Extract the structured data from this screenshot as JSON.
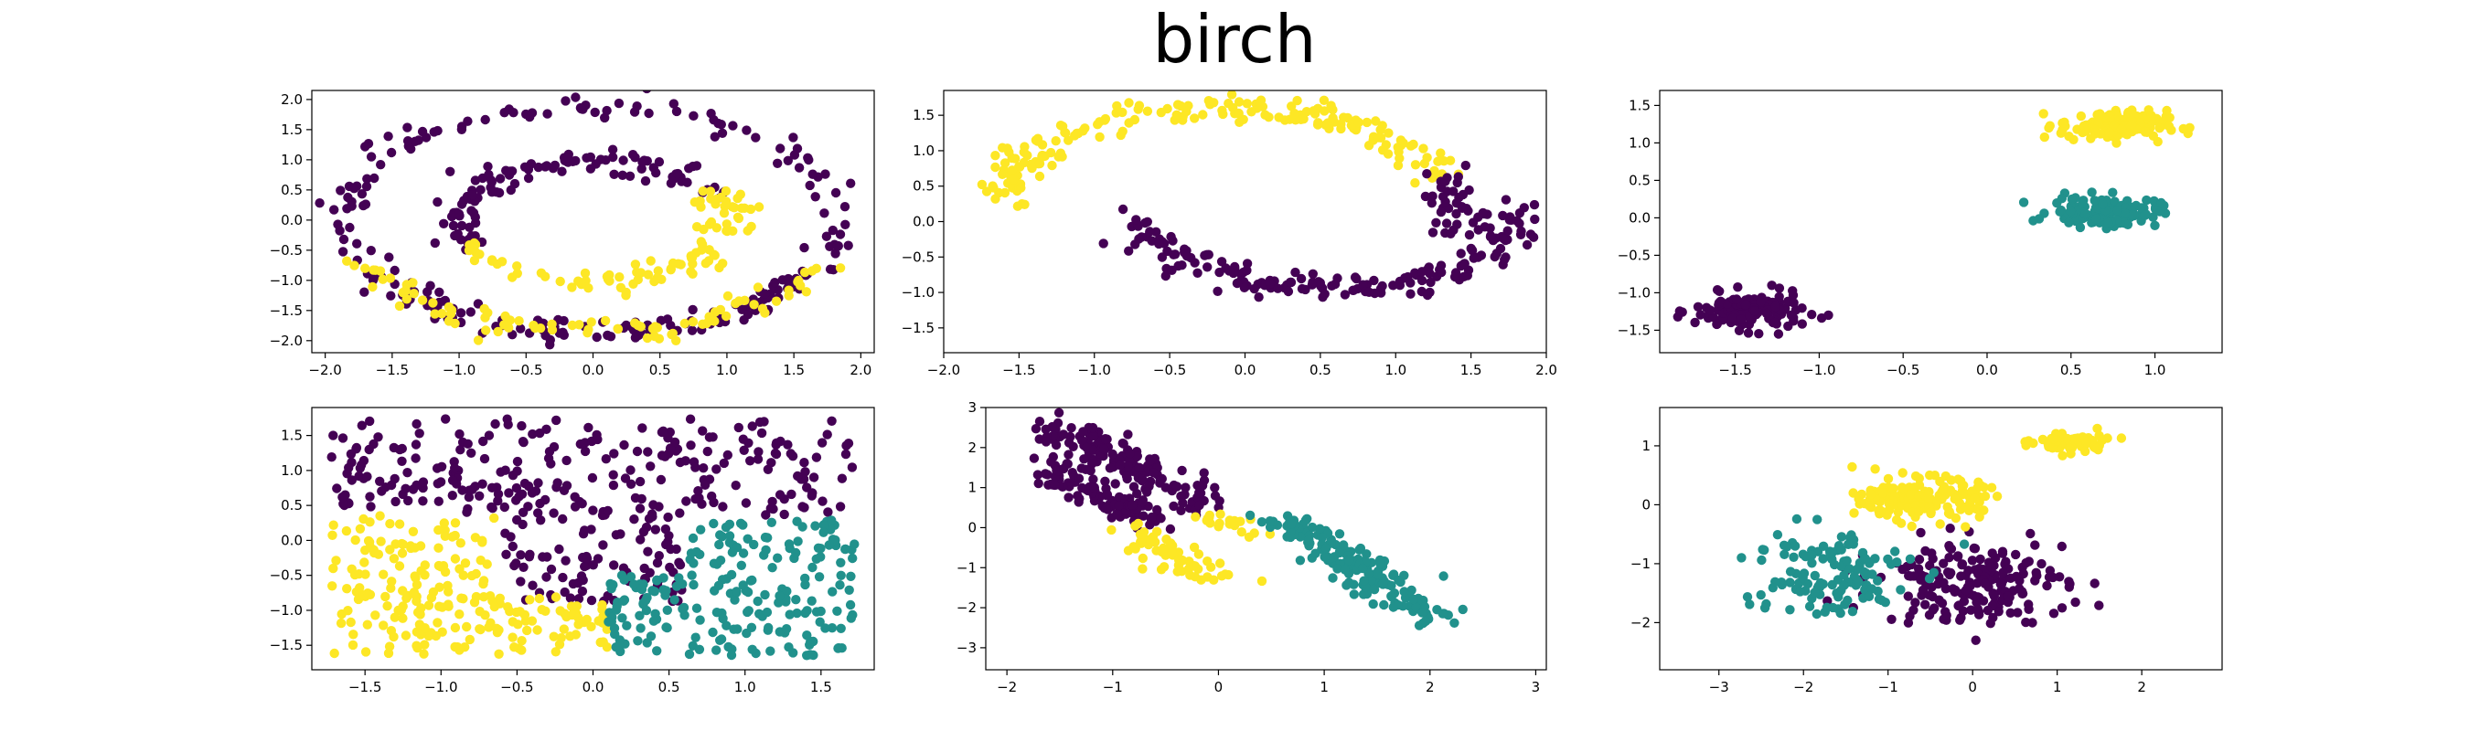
{
  "figure": {
    "title": "birch"
  },
  "palette": {
    "purple": "#440154",
    "teal": "#21918c",
    "yellow": "#fde725"
  },
  "chart_data": [
    {
      "type": "scatter",
      "subplot": "top-left",
      "xlim": [
        -2.1,
        2.1
      ],
      "ylim": [
        -2.2,
        2.15
      ],
      "xticks": [
        -2.0,
        -1.5,
        -1.0,
        -0.5,
        0.0,
        0.5,
        1.0,
        1.5,
        2.0
      ],
      "yticks": [
        -2.0,
        -1.5,
        -1.0,
        -0.5,
        0.0,
        0.5,
        1.0,
        1.5,
        2.0
      ],
      "tick_precision": 1,
      "series": [
        {
          "color": "#440154",
          "shapes": [
            {
              "kind": "arc",
              "cx": 0,
              "cy": 0,
              "r": 1.85,
              "a0": -150,
              "a1": 330,
              "n": 230,
              "noise": 0.1
            },
            {
              "kind": "arc",
              "cx": 0,
              "cy": 0,
              "r": 1.0,
              "a0": 30,
              "a1": 200,
              "n": 110,
              "noise": 0.1
            }
          ]
        },
        {
          "color": "#fde725",
          "shapes": [
            {
              "kind": "arc",
              "cx": 0,
              "cy": 0,
              "r": 1.85,
              "a0": 205,
              "a1": 335,
              "n": 90,
              "noise": 0.1
            },
            {
              "kind": "arc",
              "cx": 0,
              "cy": 0,
              "r": 1.0,
              "a0": 200,
              "a1": 390,
              "n": 100,
              "noise": 0.1
            }
          ]
        }
      ]
    },
    {
      "type": "scatter",
      "subplot": "top-middle",
      "xlim": [
        -2.0,
        2.0
      ],
      "ylim": [
        -1.85,
        1.85
      ],
      "xticks": [
        -2.0,
        -1.5,
        -1.0,
        -0.5,
        0.0,
        0.5,
        1.0,
        1.5,
        2.0
      ],
      "yticks": [
        -1.5,
        -1.0,
        -0.5,
        0.0,
        0.5,
        1.0,
        1.5
      ],
      "tick_precision": 1,
      "series": [
        {
          "color": "#fde725",
          "shapes": [
            {
              "kind": "arc",
              "cx": -0.15,
              "cy": 0.05,
              "r": 1.55,
              "a0": 20,
              "a1": 170,
              "n": 190,
              "noise": 0.1
            }
          ]
        },
        {
          "color": "#440154",
          "shapes": [
            {
              "kind": "arc",
              "cx": 0.55,
              "cy": 0.35,
              "r": 1.3,
              "a0": 195,
              "a1": 355,
              "n": 180,
              "noise": 0.1
            },
            {
              "kind": "arc",
              "cx": -0.15,
              "cy": 0.05,
              "r": 1.55,
              "a0": -8,
              "a1": 20,
              "n": 40,
              "noise": 0.1
            }
          ]
        }
      ]
    },
    {
      "type": "scatter",
      "subplot": "top-right",
      "xlim": [
        -1.95,
        1.4
      ],
      "ylim": [
        -1.8,
        1.7
      ],
      "xticks": [
        -1.5,
        -1.0,
        -0.5,
        0.0,
        0.5,
        1.0
      ],
      "yticks": [
        -1.5,
        -1.0,
        -0.5,
        0.0,
        0.5,
        1.0,
        1.5
      ],
      "tick_precision": 1,
      "series": [
        {
          "color": "#440154",
          "shapes": [
            {
              "kind": "blob",
              "cx": -1.42,
              "cy": -1.25,
              "sx": 0.16,
              "sy": 0.12,
              "n": 150
            }
          ]
        },
        {
          "color": "#21918c",
          "shapes": [
            {
              "kind": "blob",
              "cx": 0.7,
              "cy": 0.08,
              "sx": 0.16,
              "sy": 0.1,
              "n": 140
            }
          ]
        },
        {
          "color": "#fde725",
          "shapes": [
            {
              "kind": "blob",
              "cx": 0.75,
              "cy": 1.23,
              "sx": 0.16,
              "sy": 0.1,
              "n": 140
            }
          ]
        }
      ]
    },
    {
      "type": "scatter",
      "subplot": "bottom-left",
      "xlim": [
        -1.85,
        1.85
      ],
      "ylim": [
        -1.85,
        1.9
      ],
      "xticks": [
        -1.5,
        -1.0,
        -0.5,
        0.0,
        0.5,
        1.0,
        1.5
      ],
      "yticks": [
        -1.5,
        -1.0,
        -0.5,
        0.0,
        0.5,
        1.0,
        1.5
      ],
      "tick_precision": 1,
      "series": [
        {
          "color": "#440154",
          "shapes": [
            {
              "kind": "rect",
              "x0": -1.72,
              "x1": 1.72,
              "y0": 0.35,
              "y1": 1.75,
              "n": 260
            },
            {
              "kind": "rect",
              "x0": -0.6,
              "x1": 0.6,
              "y0": -0.9,
              "y1": 0.35,
              "n": 90
            }
          ]
        },
        {
          "color": "#fde725",
          "shapes": [
            {
              "kind": "rect",
              "x0": -1.72,
              "x1": -0.65,
              "y0": -1.65,
              "y1": 0.35,
              "n": 160
            },
            {
              "kind": "rect",
              "x0": -0.65,
              "x1": 0.1,
              "y0": -1.65,
              "y1": -0.8,
              "n": 60
            }
          ]
        },
        {
          "color": "#21918c",
          "shapes": [
            {
              "kind": "rect",
              "x0": 0.6,
              "x1": 1.72,
              "y0": -1.65,
              "y1": 0.3,
              "n": 160
            },
            {
              "kind": "rect",
              "x0": 0.1,
              "x1": 0.6,
              "y0": -1.65,
              "y1": -0.5,
              "n": 60
            }
          ]
        }
      ]
    },
    {
      "type": "scatter",
      "subplot": "bottom-middle",
      "xlim": [
        -2.2,
        3.1
      ],
      "ylim": [
        -3.55,
        3.0
      ],
      "xticks": [
        -2,
        -1,
        0,
        1,
        2,
        3
      ],
      "yticks": [
        -3,
        -2,
        -1,
        0,
        1,
        2,
        3
      ],
      "tick_precision": 0,
      "series": [
        {
          "color": "#440154",
          "shapes": [
            {
              "kind": "line",
              "x0": -1.5,
              "y0": 2.5,
              "x1": -0.1,
              "y1": 0.5,
              "n": 150,
              "noise": 0.15
            },
            {
              "kind": "line",
              "x0": -1.6,
              "y0": 1.5,
              "x1": -0.7,
              "y1": 0.2,
              "n": 110,
              "noise": 0.15
            }
          ]
        },
        {
          "color": "#fde725",
          "shapes": [
            {
              "kind": "line",
              "x0": -0.85,
              "y0": -0.1,
              "x1": -0.05,
              "y1": -1.3,
              "n": 60,
              "noise": 0.15
            },
            {
              "kind": "line",
              "x0": -0.2,
              "y0": 0.3,
              "x1": 0.35,
              "y1": -0.05,
              "n": 20,
              "noise": 0.1
            }
          ]
        },
        {
          "color": "#21918c",
          "shapes": [
            {
              "kind": "line",
              "x0": 0.6,
              "y0": 0.2,
              "x1": 2.1,
              "y1": -2.3,
              "n": 170,
              "noise": 0.15
            }
          ]
        }
      ]
    },
    {
      "type": "scatter",
      "subplot": "bottom-right",
      "xlim": [
        -3.7,
        2.95
      ],
      "ylim": [
        -2.8,
        1.65
      ],
      "xticks": [
        -3,
        -2,
        -1,
        0,
        1,
        2
      ],
      "yticks": [
        -2,
        -1,
        0,
        1
      ],
      "tick_precision": 0,
      "series": [
        {
          "color": "#440154",
          "shapes": [
            {
              "kind": "blob",
              "cx": 0.0,
              "cy": -1.3,
              "sx": 0.55,
              "sy": 0.35,
              "n": 190
            }
          ]
        },
        {
          "color": "#21918c",
          "shapes": [
            {
              "kind": "blob",
              "cx": -1.75,
              "cy": -1.15,
              "sx": 0.5,
              "sy": 0.4,
              "n": 130
            }
          ]
        },
        {
          "color": "#fde725",
          "shapes": [
            {
              "kind": "blob",
              "cx": -0.6,
              "cy": 0.1,
              "sx": 0.35,
              "sy": 0.17,
              "n": 180
            },
            {
              "kind": "blob",
              "cx": 1.15,
              "cy": 1.05,
              "sx": 0.22,
              "sy": 0.09,
              "n": 70
            }
          ]
        }
      ]
    }
  ]
}
